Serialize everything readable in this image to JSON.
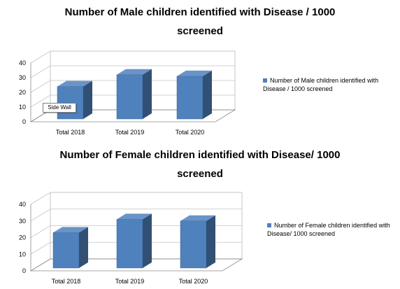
{
  "chart_data": [
    {
      "type": "bar",
      "title": "Number of Male children identified with Disease / 1000 screened",
      "categories": [
        "Total 2018",
        "Total 2019",
        "Total 2020"
      ],
      "series": [
        {
          "name": "Number of Male children identified with Disease / 1000 screened",
          "values": [
            24,
            32,
            31
          ]
        }
      ],
      "yticks": [
        "0",
        "10",
        "20",
        "30",
        "40"
      ],
      "ylim": [
        0,
        40
      ],
      "grid": true,
      "legend": "right",
      "bar_color": "#4F81BD",
      "tooltip": "Side Wall"
    },
    {
      "type": "bar",
      "title": "Number of Female children identified with Disease/ 1000 screened",
      "categories": [
        "Total 2018",
        "Total 2019",
        "Total 2020"
      ],
      "series": [
        {
          "name": "Number of Female children identified with Disease/ 1000 screened",
          "values": [
            23,
            31,
            30
          ]
        }
      ],
      "yticks": [
        "0",
        "10",
        "20",
        "30",
        "40"
      ],
      "ylim": [
        0,
        40
      ],
      "grid": true,
      "legend": "right",
      "bar_color": "#4F81BD"
    }
  ]
}
